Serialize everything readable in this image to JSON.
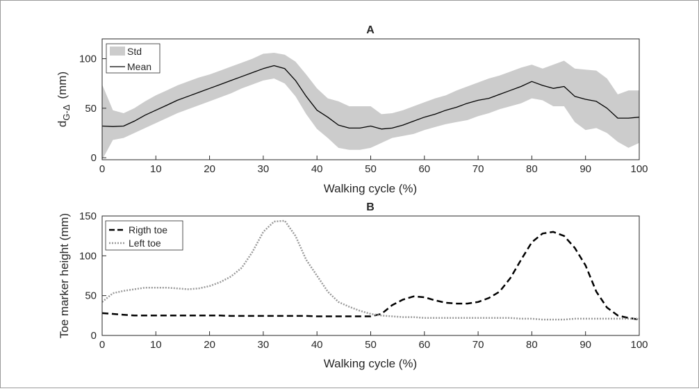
{
  "chart_data": [
    {
      "type": "area",
      "title": "A",
      "xlabel": "Walking cycle (%)",
      "ylabel_main": "d",
      "ylabel_sub": "G-Δ",
      "ylabel_unit": "(mm)",
      "xlim": [
        0,
        100
      ],
      "ylim": [
        -2,
        120
      ],
      "xticks": [
        "0",
        "10",
        "20",
        "30",
        "40",
        "50",
        "60",
        "70",
        "80",
        "90",
        "100"
      ],
      "yticks": [
        "0",
        "50",
        "100"
      ],
      "grid": false,
      "legend_position": "top-left",
      "colors": {
        "band": "#cccccc",
        "mean": "#000000"
      },
      "x": [
        0,
        2,
        4,
        6,
        8,
        10,
        12,
        14,
        16,
        18,
        20,
        22,
        24,
        26,
        28,
        30,
        32,
        34,
        36,
        38,
        40,
        42,
        44,
        46,
        48,
        50,
        52,
        54,
        56,
        58,
        60,
        62,
        64,
        66,
        68,
        70,
        72,
        74,
        76,
        78,
        80,
        82,
        84,
        86,
        88,
        90,
        92,
        94,
        96,
        98,
        100
      ],
      "series": [
        {
          "name": "Mean",
          "values": [
            32,
            31.5,
            32,
            37,
            43,
            48,
            53,
            58,
            62,
            66,
            70,
            74,
            78,
            82,
            86,
            90,
            93,
            90,
            78,
            62,
            48,
            41,
            33,
            30,
            30,
            32,
            29,
            30,
            33,
            37,
            41,
            44,
            48,
            51,
            55,
            58,
            60,
            64,
            68,
            72,
            77,
            73,
            70,
            72,
            62,
            59,
            57,
            50,
            40,
            40,
            41
          ]
        },
        {
          "name": "Std",
          "upper": [
            74,
            48,
            45,
            50,
            57,
            63,
            68,
            73,
            77,
            81,
            84,
            88,
            92,
            96,
            100,
            105,
            106,
            104,
            97,
            84,
            70,
            60,
            57,
            52,
            52,
            52,
            44,
            45,
            48,
            52,
            56,
            60,
            63,
            68,
            72,
            76,
            80,
            83,
            87,
            91,
            94,
            90,
            94,
            98,
            90,
            89,
            88,
            80,
            64,
            68,
            68
          ],
          "lower": [
            -2,
            18,
            20,
            25,
            30,
            35,
            40,
            45,
            49,
            53,
            57,
            61,
            65,
            70,
            74,
            78,
            80,
            75,
            62,
            44,
            29,
            20,
            10,
            8,
            8,
            10,
            15,
            20,
            22,
            24,
            28,
            31,
            34,
            36,
            38,
            42,
            45,
            49,
            52,
            55,
            60,
            58,
            52,
            52,
            36,
            28,
            30,
            25,
            16,
            10,
            15
          ]
        }
      ]
    },
    {
      "type": "line",
      "title": "B",
      "xlabel": "Walking cycle (%)",
      "ylabel": "Toe marker height (mm)",
      "xlim": [
        0,
        100
      ],
      "ylim": [
        0,
        150
      ],
      "xticks": [
        "0",
        "10",
        "20",
        "30",
        "40",
        "50",
        "60",
        "70",
        "80",
        "90",
        "100"
      ],
      "yticks": [
        "0",
        "50",
        "100",
        "150"
      ],
      "grid": false,
      "legend_position": "top-left",
      "colors": {
        "right": "#000000",
        "left": "#999999"
      },
      "x": [
        0,
        2,
        4,
        6,
        8,
        10,
        12,
        14,
        16,
        18,
        20,
        22,
        24,
        26,
        28,
        30,
        32,
        34,
        36,
        38,
        40,
        42,
        44,
        46,
        48,
        50,
        52,
        54,
        56,
        58,
        60,
        62,
        64,
        66,
        68,
        70,
        72,
        74,
        76,
        78,
        80,
        82,
        84,
        86,
        88,
        90,
        92,
        94,
        96,
        98,
        100
      ],
      "series": [
        {
          "name": "Rigth toe",
          "style": "dashed",
          "values": [
            28,
            27,
            26,
            25,
            25,
            25,
            25,
            25,
            25,
            25,
            25,
            25,
            24.5,
            24.5,
            24.5,
            24.5,
            24.5,
            24.5,
            24.5,
            24.5,
            24,
            24,
            24,
            24,
            24,
            24,
            27,
            38,
            45,
            49,
            48,
            44,
            41,
            40,
            40,
            42,
            47,
            55,
            72,
            95,
            117,
            128,
            130,
            125,
            110,
            88,
            55,
            35,
            25,
            22,
            20
          ]
        },
        {
          "name": "Left toe",
          "style": "dotted",
          "values": [
            42,
            53,
            56,
            58,
            60,
            60,
            60,
            59,
            58,
            59,
            62,
            67,
            74,
            85,
            105,
            130,
            143,
            144,
            125,
            95,
            75,
            55,
            42,
            36,
            31,
            27,
            25,
            24,
            23,
            23,
            22,
            22,
            22,
            22,
            22,
            22,
            22,
            22,
            22,
            21,
            21,
            20,
            20,
            20,
            21,
            21,
            21,
            21,
            21,
            21,
            21
          ]
        }
      ]
    }
  ]
}
